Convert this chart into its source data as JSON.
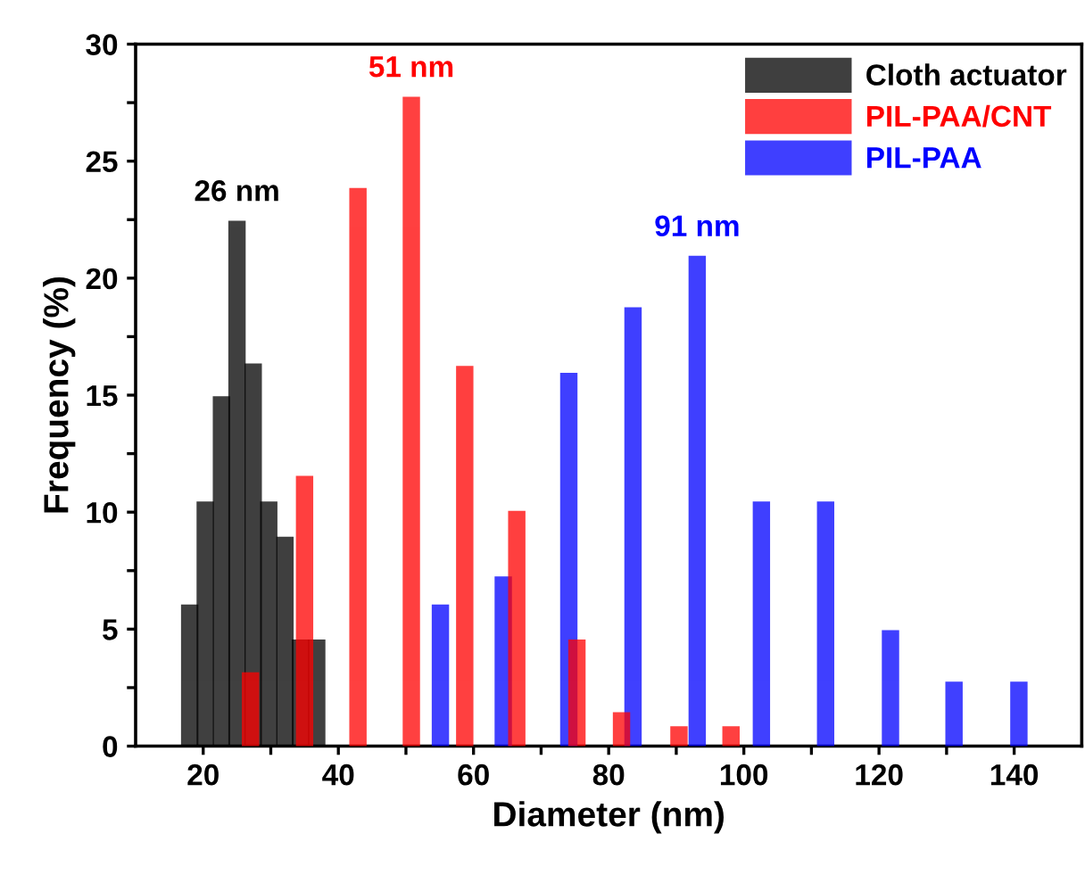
{
  "chart_data": {
    "type": "bar",
    "xlabel": "Diameter (nm)",
    "ylabel": "Frequency (%)",
    "series": [
      {
        "name": "Cloth actuator",
        "color": "#000000",
        "x": [
          18,
          20.3,
          22.7,
          25.0,
          27.4,
          29.7,
          32.1,
          34.4,
          36.8
        ],
        "values": [
          6.0,
          10.4,
          14.9,
          22.4,
          16.3,
          10.4,
          8.9,
          4.5,
          4.5
        ]
      },
      {
        "name": "PIL-PAA/CNT",
        "color": "#ff0000",
        "x": [
          27,
          35,
          42.9,
          50.8,
          58.7,
          66.4,
          75.3,
          81.9,
          90.4,
          98.1
        ],
        "values": [
          3.1,
          11.5,
          23.8,
          27.7,
          16.2,
          10.0,
          4.5,
          1.4,
          0.8,
          0.8
        ]
      },
      {
        "name": "PIL-PAA",
        "color": "#0000ff",
        "x": [
          55.1,
          64.4,
          74.1,
          83.6,
          93.1,
          102.6,
          112.1,
          121.7,
          131.1,
          140.7
        ],
        "values": [
          6.0,
          7.2,
          15.9,
          18.7,
          20.9,
          10.4,
          10.4,
          4.9,
          2.7,
          2.7
        ]
      }
    ],
    "annotations": [
      {
        "text": "26 nm",
        "x": 25.0,
        "y": 22.4
      },
      {
        "text": "51 nm",
        "x": 50.8,
        "y": 27.7
      },
      {
        "text": "91 nm",
        "x": 93.1,
        "y": 20.9
      }
    ],
    "xlim": [
      10,
      150
    ],
    "xticks": [
      20,
      {
        "value": 30,
        "label": null
      },
      40,
      {
        "value": 50,
        "label": null
      },
      60,
      {
        "value": 70,
        "label": null
      },
      80,
      {
        "value": 90,
        "label": null
      },
      100,
      {
        "value": 110,
        "label": null
      },
      120,
      {
        "value": 130,
        "label": null
      },
      140
    ],
    "ylim": [
      0,
      30
    ],
    "yticks": [
      0,
      {
        "value": 2.5,
        "label": null
      },
      5,
      {
        "value": 7.5,
        "label": null
      },
      10,
      {
        "value": 12.5,
        "label": null
      },
      15,
      {
        "value": 17.5,
        "label": null
      },
      20,
      {
        "value": 22.5,
        "label": null
      },
      25,
      {
        "value": 27.5,
        "label": null
      },
      30
    ],
    "grid": false,
    "legend": "top right"
  }
}
